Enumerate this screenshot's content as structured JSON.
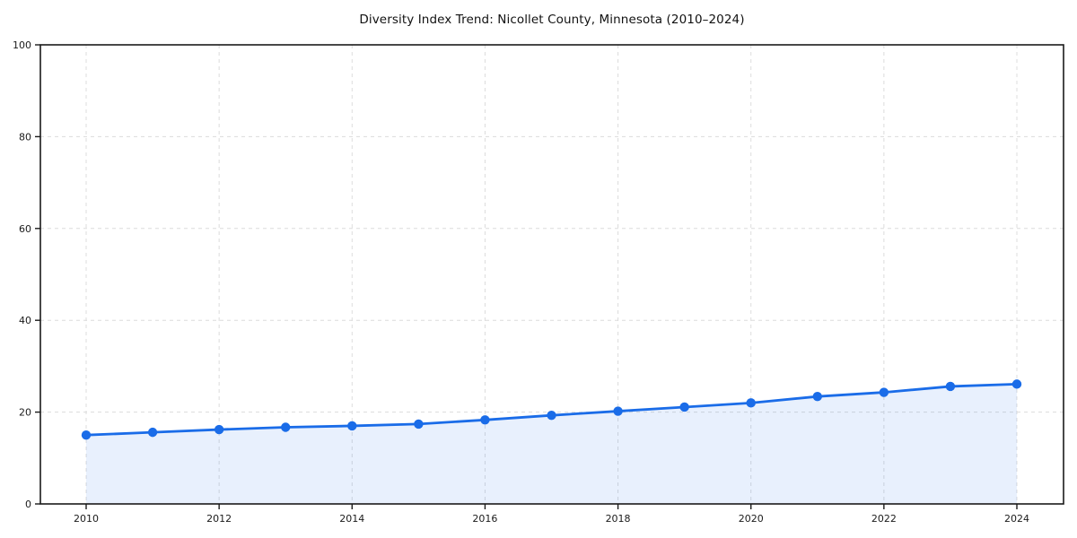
{
  "chart_data": {
    "type": "line",
    "title": "Diversity Index Trend: Nicollet County, Minnesota (2010–2024)",
    "xlabel": "",
    "ylabel": "",
    "x": [
      2010,
      2011,
      2012,
      2013,
      2014,
      2015,
      2016,
      2017,
      2018,
      2019,
      2020,
      2021,
      2022,
      2023,
      2024
    ],
    "series": [
      {
        "name": "Diversity Index",
        "values": [
          15.0,
          15.6,
          16.2,
          16.7,
          17.0,
          17.4,
          18.3,
          19.3,
          20.2,
          21.1,
          22.0,
          23.4,
          24.3,
          25.6,
          26.1
        ]
      }
    ],
    "ylim": [
      0,
      100
    ],
    "yticks": [
      0,
      20,
      40,
      60,
      80,
      100
    ],
    "xticks": [
      2010,
      2012,
      2014,
      2016,
      2018,
      2020,
      2022,
      2024
    ],
    "grid": "dashed",
    "legend_position": "none",
    "marker": "circle",
    "area_fill": true,
    "colors": {
      "line": "#1a6ce8",
      "marker": "#1a6ce8",
      "area": "#1a6ce8",
      "area_opacity": "0.10",
      "grid": "#dcdcdc",
      "spine": "#1a1a1a",
      "tick_text": "#1a1a1a",
      "title_text": "#111111",
      "background": "#ffffff"
    }
  }
}
